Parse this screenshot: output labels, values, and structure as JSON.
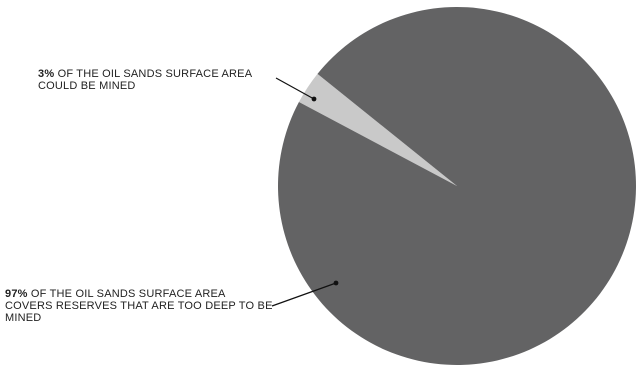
{
  "chart_data": {
    "type": "pie",
    "title": "",
    "slices": [
      {
        "value": 3,
        "value_label": "3%",
        "label": "OF THE OIL SANDS SURFACE AREA COULD BE MINED",
        "color": "#c9c9c9"
      },
      {
        "value": 97,
        "value_label": "97%",
        "label": "OF THE OIL SANDS SURFACE AREA COVERS RESERVES THAT ARE TOO DEEP TO BE MINED",
        "color": "#636364"
      }
    ]
  }
}
